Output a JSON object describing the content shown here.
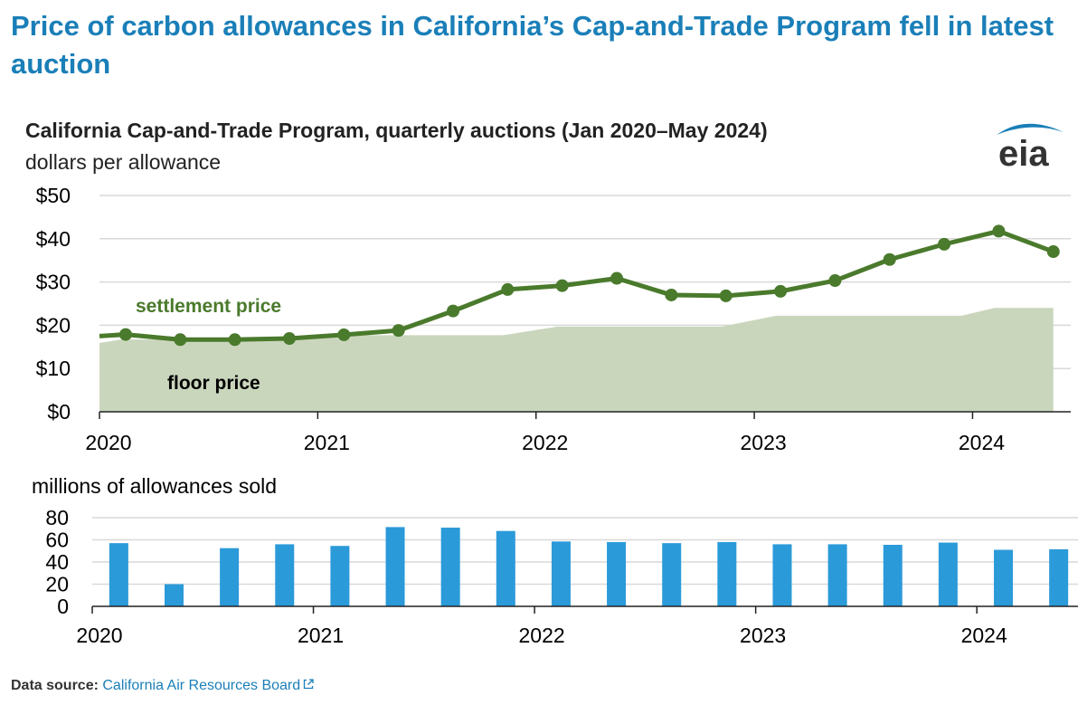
{
  "headline": "Price of carbon allowances in California’s Cap-and-Trade Program fell in latest auction",
  "logo_text": "eia",
  "colors": {
    "headline": "#1a7fb8",
    "settlement": "#4a7a2c",
    "floor": "#c9d6bc",
    "bars": "#2b9ad9",
    "grid": "#d9d9d9",
    "axis": "#222222"
  },
  "footer": {
    "label": "Data source:",
    "source": "California Air Resources Board",
    "link_icon": "external-link-icon"
  },
  "chart_data": [
    {
      "type": "line",
      "title": "California Cap-and-Trade Program, quarterly auctions (Jan 2020–May 2024)",
      "ylabel": "dollars per allowance",
      "x_ticks": [
        "2020",
        "2021",
        "2022",
        "2023",
        "2024"
      ],
      "x_range": [
        2020.0,
        2024.4
      ],
      "y_ticks": [
        "$0",
        "$10",
        "$20",
        "$30",
        "$40",
        "$50"
      ],
      "ylim": [
        0,
        50
      ],
      "grid": true,
      "series": [
        {
          "name": "settlement price",
          "style": "line-with-markers",
          "x": [
            2020.12,
            2020.37,
            2020.62,
            2020.87,
            2021.12,
            2021.37,
            2021.62,
            2021.87,
            2022.12,
            2022.37,
            2022.62,
            2022.87,
            2023.12,
            2023.37,
            2023.62,
            2023.87,
            2024.12,
            2024.37
          ],
          "y": [
            17.87,
            16.68,
            16.68,
            16.94,
            17.8,
            18.8,
            23.3,
            28.26,
            29.15,
            30.85,
            27.0,
            26.8,
            27.85,
            30.33,
            35.2,
            38.73,
            41.76,
            37.02
          ],
          "start_value": 17.5
        },
        {
          "name": "floor price",
          "style": "area",
          "x": [
            2020.0,
            2020.1,
            2020.95,
            2021.1,
            2021.85,
            2022.1,
            2022.85,
            2023.1,
            2023.95,
            2024.1,
            2024.37
          ],
          "y": [
            15.9,
            16.7,
            16.7,
            17.7,
            17.7,
            19.7,
            19.7,
            22.2,
            22.2,
            24.0,
            24.0
          ]
        }
      ]
    },
    {
      "type": "bar",
      "ylabel": "millions of allowances sold",
      "x_ticks": [
        "2020",
        "2021",
        "2022",
        "2023",
        "2024"
      ],
      "x_range": [
        2020.0,
        2024.4
      ],
      "y_ticks": [
        "0",
        "20",
        "40",
        "60",
        "80"
      ],
      "ylim": [
        0,
        80
      ],
      "grid": true,
      "series": [
        {
          "name": "",
          "x": [
            2020.12,
            2020.37,
            2020.62,
            2020.87,
            2021.12,
            2021.37,
            2021.62,
            2021.87,
            2022.12,
            2022.37,
            2022.62,
            2022.87,
            2023.12,
            2023.37,
            2023.62,
            2023.87,
            2024.12,
            2024.37
          ],
          "values": [
            57.0,
            20.0,
            52.5,
            56.0,
            54.5,
            71.5,
            71.0,
            68.0,
            58.5,
            58.0,
            57.0,
            58.0,
            56.0,
            56.0,
            55.5,
            57.5,
            51.0,
            51.5
          ]
        }
      ]
    }
  ]
}
